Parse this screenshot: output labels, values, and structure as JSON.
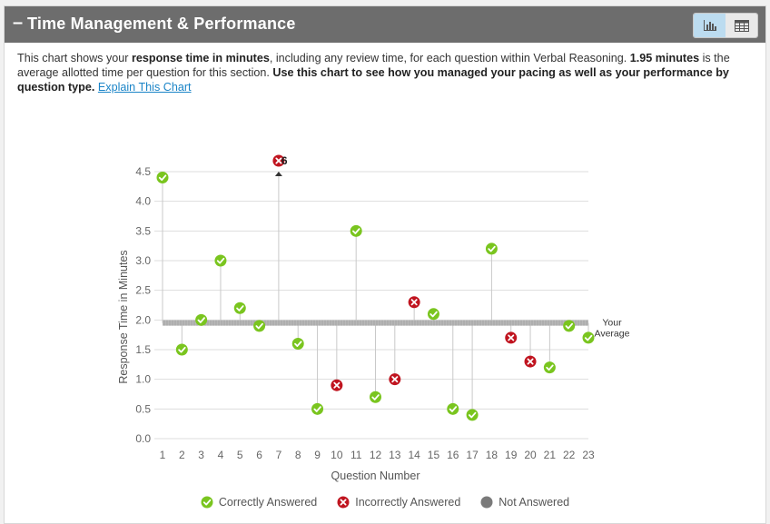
{
  "header": {
    "collapse_symbol": "–",
    "title": "Time Management & Performance",
    "view_toggle": [
      "bar-chart-icon",
      "table-icon"
    ]
  },
  "description": {
    "t1": "This chart shows your ",
    "b1": "response time in minutes",
    "t2": ", including any review time, for each question within Verbal Reasoning. ",
    "b2": "1.95 minutes",
    "t3": " is the average allotted time per question for this section. ",
    "b3": "Use this chart to see how you managed your pacing as well as your performance by question type.",
    "t4": " ",
    "link": "Explain This Chart"
  },
  "colors": {
    "correct": "#7ac51f",
    "incorrect": "#c0141f",
    "not_answered": "#7a7a7a",
    "average_line": "#b8b8b8",
    "grid": "#dddddd"
  },
  "chart_data": {
    "type": "scatter",
    "xlabel": "Question Number",
    "ylabel": "Response Time in Minutes",
    "xlim": [
      1,
      23
    ],
    "ylim": [
      0,
      4.5
    ],
    "yticks": [
      "0.0",
      "0.5",
      "1.0",
      "1.5",
      "2.0",
      "2.5",
      "3.0",
      "3.5",
      "4.0",
      "4.5"
    ],
    "xticks": [
      "1",
      "2",
      "3",
      "4",
      "5",
      "6",
      "7",
      "8",
      "9",
      "10",
      "11",
      "12",
      "13",
      "14",
      "15",
      "16",
      "17",
      "18",
      "19",
      "20",
      "21",
      "22",
      "23"
    ],
    "average": 1.95,
    "average_label": [
      "Your",
      "Average"
    ],
    "overflow_label": "6",
    "points": [
      {
        "q": 1,
        "time": 4.4,
        "status": "correct"
      },
      {
        "q": 2,
        "time": 1.5,
        "status": "correct"
      },
      {
        "q": 3,
        "time": 2.0,
        "status": "correct"
      },
      {
        "q": 4,
        "time": 3.0,
        "status": "correct"
      },
      {
        "q": 5,
        "time": 2.2,
        "status": "correct"
      },
      {
        "q": 6,
        "time": 1.9,
        "status": "correct"
      },
      {
        "q": 7,
        "time": 6,
        "status": "incorrect"
      },
      {
        "q": 8,
        "time": 1.6,
        "status": "correct"
      },
      {
        "q": 9,
        "time": 0.5,
        "status": "correct"
      },
      {
        "q": 10,
        "time": 0.9,
        "status": "incorrect"
      },
      {
        "q": 11,
        "time": 3.5,
        "status": "correct"
      },
      {
        "q": 12,
        "time": 0.7,
        "status": "correct"
      },
      {
        "q": 13,
        "time": 1.0,
        "status": "incorrect"
      },
      {
        "q": 14,
        "time": 2.3,
        "status": "incorrect"
      },
      {
        "q": 15,
        "time": 2.1,
        "status": "correct"
      },
      {
        "q": 16,
        "time": 0.5,
        "status": "correct"
      },
      {
        "q": 17,
        "time": 0.4,
        "status": "correct"
      },
      {
        "q": 18,
        "time": 3.2,
        "status": "correct"
      },
      {
        "q": 19,
        "time": 1.7,
        "status": "incorrect"
      },
      {
        "q": 20,
        "time": 1.3,
        "status": "incorrect"
      },
      {
        "q": 21,
        "time": 1.2,
        "status": "correct"
      },
      {
        "q": 22,
        "time": 1.9,
        "status": "correct"
      },
      {
        "q": 23,
        "time": 1.7,
        "status": "correct"
      }
    ],
    "legend": [
      {
        "status": "correct",
        "label": "Correctly Answered"
      },
      {
        "status": "incorrect",
        "label": "Incorrectly Answered"
      },
      {
        "status": "not_answered",
        "label": "Not Answered"
      }
    ]
  }
}
